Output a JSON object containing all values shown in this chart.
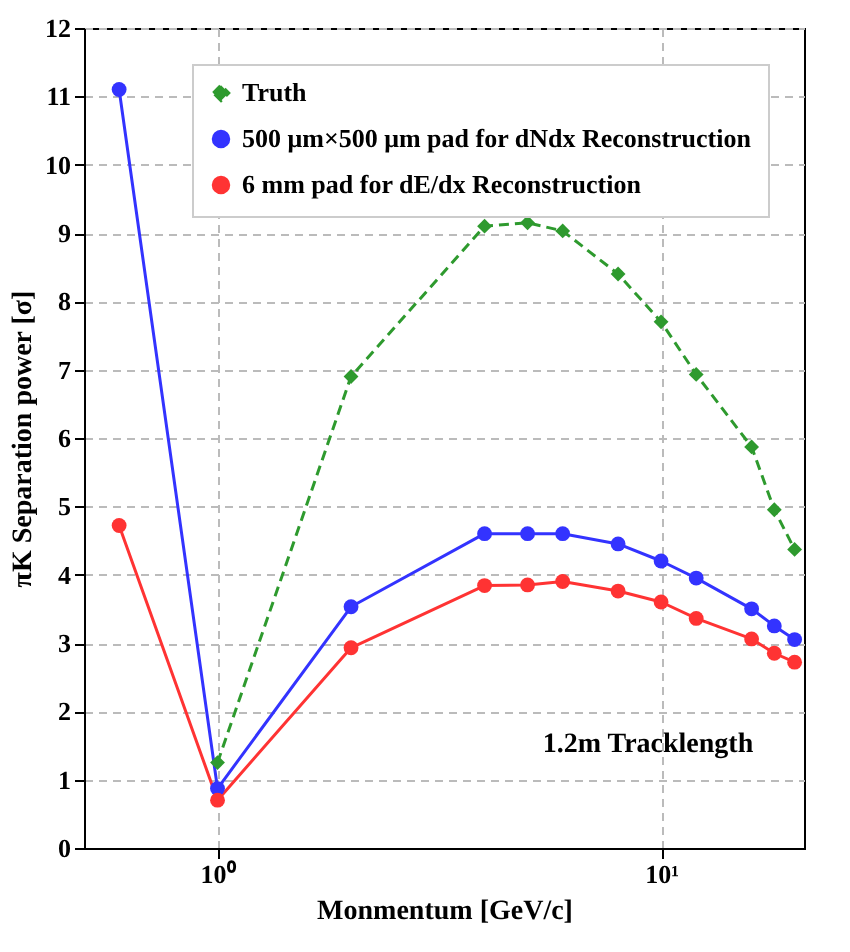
{
  "chart_data": {
    "type": "line",
    "xlabel": "Monmentum [GeV/c]",
    "ylabel": "πK Separation power [σ]",
    "x": [
      0.6,
      1,
      2,
      4,
      5,
      6,
      8,
      10,
      12,
      16,
      18,
      20
    ],
    "series": [
      {
        "name": "Truth",
        "color": "#2e9a2e",
        "marker": "diamond",
        "line_style": "dashed",
        "values": [
          null,
          1.25,
          6.9,
          9.1,
          9.15,
          9.03,
          8.4,
          7.7,
          6.93,
          5.87,
          4.95,
          4.37
        ]
      },
      {
        "name": "500 μm×500 μm pad for dNdx Reconstruction",
        "color": "#3333ff",
        "marker": "circle",
        "line_style": "solid",
        "values": [
          11.1,
          0.87,
          3.53,
          4.6,
          4.6,
          4.6,
          4.45,
          4.2,
          3.95,
          3.5,
          3.25,
          3.05
        ]
      },
      {
        "name": "6 mm pad for dE/dx Reconstruction",
        "color": "#ff3333",
        "marker": "circle",
        "line_style": "solid",
        "values": [
          4.72,
          0.7,
          2.93,
          3.84,
          3.85,
          3.9,
          3.76,
          3.6,
          3.36,
          3.06,
          2.85,
          2.72
        ]
      }
    ],
    "log": "x",
    "xlim": [
      0.5,
      21
    ],
    "xticks": [
      {
        "value": 1,
        "label": "10⁰"
      },
      {
        "value": 10,
        "label": "10¹"
      }
    ],
    "ylim": [
      0,
      12
    ],
    "yticks": [
      0,
      1,
      2,
      3,
      4,
      5,
      6,
      7,
      8,
      9,
      10,
      11,
      12
    ],
    "grid": true,
    "legend": "top right",
    "annotations": [
      "1.2m Tracklength"
    ]
  }
}
